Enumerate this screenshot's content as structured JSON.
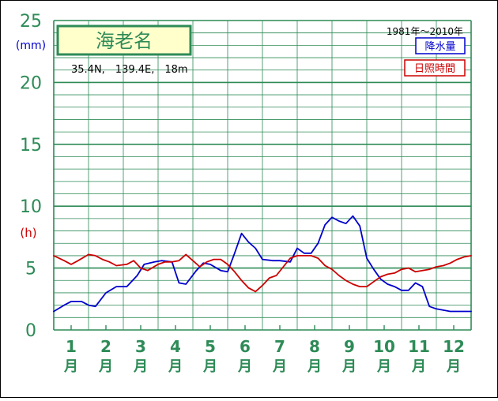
{
  "chart_data": {
    "type": "line",
    "station": {
      "name": "海老名",
      "location": "35.4N,　139.4E,　18m"
    },
    "period": "1981年〜2010年",
    "y_units": {
      "precipitation": "(mm)",
      "sunshine": "(h)"
    },
    "y_ticks": [
      "0",
      "5",
      "10",
      "15",
      "20",
      "25"
    ],
    "ylim": [
      0,
      25
    ],
    "grid": true,
    "legend_position": "top-right",
    "x_range": [
      0.5,
      12.5
    ],
    "months": [
      {
        "num": "1",
        "unit": "月"
      },
      {
        "num": "2",
        "unit": "月"
      },
      {
        "num": "3",
        "unit": "月"
      },
      {
        "num": "4",
        "unit": "月"
      },
      {
        "num": "5",
        "unit": "月"
      },
      {
        "num": "6",
        "unit": "月"
      },
      {
        "num": "7",
        "unit": "月"
      },
      {
        "num": "8",
        "unit": "月"
      },
      {
        "num": "9",
        "unit": "月"
      },
      {
        "num": "10",
        "unit": "月"
      },
      {
        "num": "11",
        "unit": "月"
      },
      {
        "num": "12",
        "unit": "月"
      }
    ],
    "series": [
      {
        "name": "降水量",
        "color": "#0000cc",
        "x": [
          0.5,
          0.8,
          1.0,
          1.3,
          1.5,
          1.7,
          2.0,
          2.3,
          2.6,
          2.9,
          3.1,
          3.4,
          3.6,
          3.9,
          4.1,
          4.3,
          4.6,
          4.8,
          5.0,
          5.3,
          5.5,
          5.7,
          5.9,
          6.1,
          6.3,
          6.5,
          6.8,
          7.0,
          7.3,
          7.5,
          7.7,
          7.9,
          8.1,
          8.3,
          8.5,
          8.7,
          8.9,
          9.1,
          9.3,
          9.5,
          9.7,
          9.9,
          10.1,
          10.3,
          10.5,
          10.7,
          10.9,
          11.1,
          11.3,
          11.5,
          11.7,
          11.9,
          12.1,
          12.3,
          12.5
        ],
        "values": [
          1.5,
          2.0,
          2.3,
          2.3,
          2.0,
          1.9,
          3.0,
          3.5,
          3.5,
          4.4,
          5.3,
          5.5,
          5.6,
          5.5,
          3.8,
          3.7,
          4.8,
          5.4,
          5.3,
          4.8,
          4.7,
          6.2,
          7.8,
          7.1,
          6.6,
          5.7,
          5.6,
          5.6,
          5.5,
          6.6,
          6.2,
          6.2,
          7.0,
          8.5,
          9.1,
          8.8,
          8.6,
          9.2,
          8.4,
          5.8,
          4.9,
          4.1,
          3.7,
          3.5,
          3.2,
          3.2,
          3.8,
          3.5,
          1.9,
          1.7,
          1.6,
          1.5,
          1.5,
          1.5,
          1.5
        ]
      },
      {
        "name": "日照時間",
        "color": "#cc0000",
        "x": [
          0.5,
          0.8,
          1.0,
          1.2,
          1.5,
          1.7,
          1.9,
          2.1,
          2.3,
          2.6,
          2.8,
          3.0,
          3.2,
          3.5,
          3.7,
          3.9,
          4.1,
          4.3,
          4.5,
          4.7,
          4.9,
          5.1,
          5.3,
          5.5,
          5.7,
          5.9,
          6.1,
          6.3,
          6.5,
          6.7,
          6.9,
          7.1,
          7.3,
          7.5,
          7.7,
          7.9,
          8.1,
          8.3,
          8.5,
          8.7,
          8.9,
          9.1,
          9.3,
          9.5,
          9.7,
          9.9,
          10.1,
          10.3,
          10.5,
          10.7,
          10.9,
          11.1,
          11.3,
          11.5,
          11.7,
          11.9,
          12.1,
          12.3,
          12.5
        ],
        "values": [
          6.0,
          5.6,
          5.3,
          5.6,
          6.1,
          6.0,
          5.7,
          5.5,
          5.2,
          5.3,
          5.6,
          5.0,
          4.8,
          5.3,
          5.5,
          5.5,
          5.6,
          6.1,
          5.6,
          5.1,
          5.5,
          5.7,
          5.7,
          5.3,
          4.7,
          4.0,
          3.4,
          3.1,
          3.6,
          4.2,
          4.4,
          5.1,
          5.8,
          6.0,
          6.0,
          6.0,
          5.8,
          5.2,
          4.9,
          4.4,
          4.0,
          3.7,
          3.5,
          3.5,
          3.9,
          4.3,
          4.5,
          4.6,
          4.9,
          5.0,
          4.7,
          4.8,
          4.9,
          5.1,
          5.2,
          5.4,
          5.7,
          5.9,
          6.0
        ]
      }
    ]
  }
}
